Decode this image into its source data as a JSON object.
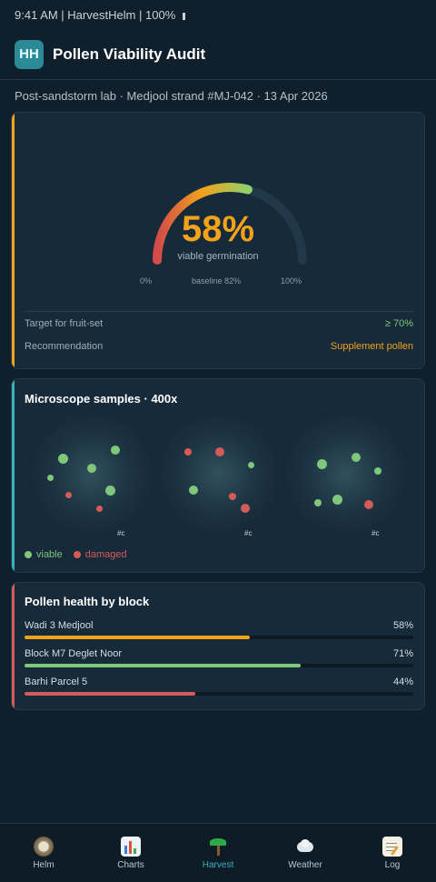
{
  "status_bar": {
    "text": "9:41 AM | HarvestHelm | 100%"
  },
  "app": {
    "logo": "HH",
    "title": "Pollen Viability Audit"
  },
  "context": "Post-sandstorm lab · Medjool strand #MJ-042 · 13 Apr 2026",
  "gauge": {
    "value_pct": 58,
    "value_text": "58%",
    "caption": "viable germination",
    "min_label": "0%",
    "baseline_label": "baseline 82%",
    "max_label": "100%",
    "accent": "#f2a21b",
    "rows": [
      {
        "label": "Target for fruit-set",
        "value": "≥ 70%",
        "color": "#7fc77a"
      },
      {
        "label": "Recommendation",
        "value": "Supplement pollen",
        "color": "#f2a21b"
      }
    ]
  },
  "microscope": {
    "title": "Microscope samples · 400x",
    "sample_label": "#c",
    "legend": [
      {
        "label": "viable",
        "color": "#7fc77a"
      },
      {
        "label": "damaged",
        "color": "#d55a5a"
      }
    ]
  },
  "blocks": {
    "title": "Pollen health by block",
    "items": [
      {
        "name": "Wadi 3 Medjool",
        "value_text": "58%",
        "value": 0.58,
        "color": "#f2a21b"
      },
      {
        "name": "Block M7 Deglet Noor",
        "value_text": "71%",
        "value": 0.71,
        "color": "#7fc77a"
      },
      {
        "name": "Barhi Parcel 5",
        "value_text": "44%",
        "value": 0.44,
        "color": "#d55a5a"
      }
    ]
  },
  "tabs": [
    {
      "label": "Helm",
      "icon": "compass-icon"
    },
    {
      "label": "Charts",
      "icon": "bar-chart-icon"
    },
    {
      "label": "Harvest",
      "icon": "palm-tree-icon",
      "active": true
    },
    {
      "label": "Weather",
      "icon": "wind-cloud-icon"
    },
    {
      "label": "Log",
      "icon": "notepad-icon"
    }
  ]
}
